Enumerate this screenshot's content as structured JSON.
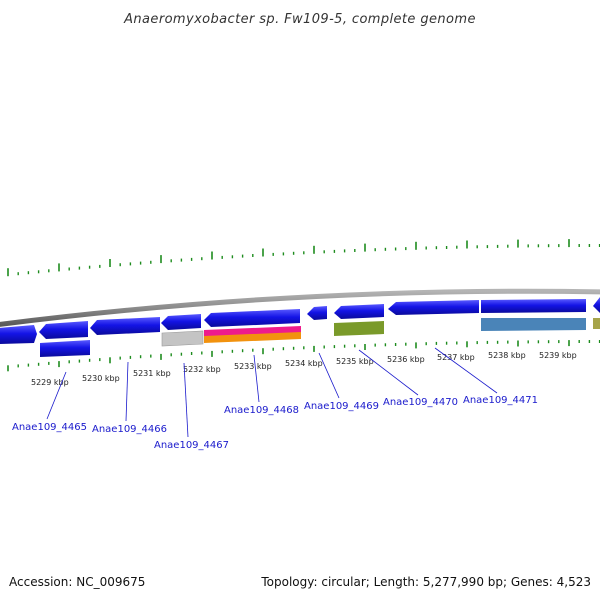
{
  "title": "Anaeromyxobacter sp. Fw109-5, complete genome",
  "footer": {
    "accession": "Accession: NC_009675",
    "summary": "Topology: circular; Length: 5,277,990 bp; Genes: 4,523"
  },
  "colors": {
    "gene_blue": "#1414e6",
    "grey_gene": "#c4c4c4",
    "magenta_track": "#ee1c8c",
    "orange_track": "#f2920e",
    "olive_track": "#7a9a2a",
    "steel_track": "#4a84b8",
    "tick_green": "#1e8c1e",
    "backbone": "#8a8a8a",
    "label_blue": "#1a1acc"
  },
  "ticks": [
    {
      "label": "5229 kbp"
    },
    {
      "label": "5230 kbp"
    },
    {
      "label": "5231 kbp"
    },
    {
      "label": "5232 kbp"
    },
    {
      "label": "5233 kbp"
    },
    {
      "label": "5234 kbp"
    },
    {
      "label": "5235 kbp"
    },
    {
      "label": "5236 kbp"
    },
    {
      "label": "5237 kbp"
    },
    {
      "label": "5238 kbp"
    },
    {
      "label": "5239 kbp"
    }
  ],
  "gene_labels": [
    {
      "text": "Anae109_4465"
    },
    {
      "text": "Anae109_4466"
    },
    {
      "text": "Anae109_4467"
    },
    {
      "text": "Anae109_4468"
    },
    {
      "text": "Anae109_4469"
    },
    {
      "text": "Anae109_4470"
    },
    {
      "text": "Anae109_4471"
    }
  ]
}
